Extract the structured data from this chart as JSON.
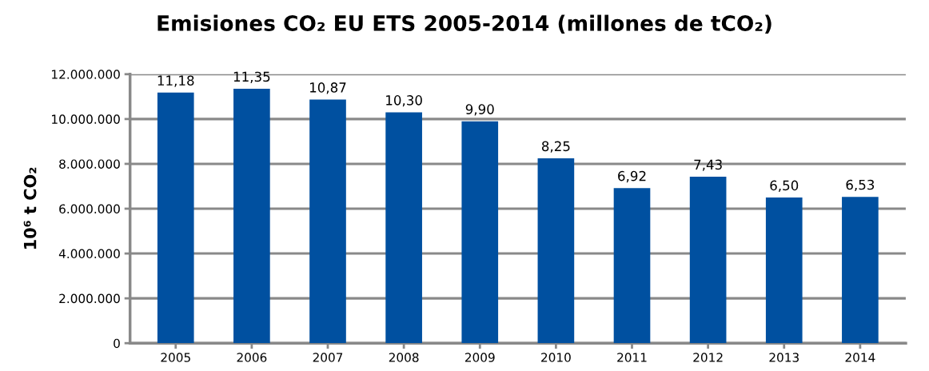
{
  "chart_data": {
    "type": "bar",
    "title": "Emisiones CO₂ EU ETS 2005-2014 (millones de tCO₂)",
    "ylabel": "10⁶ t CO₂",
    "categories": [
      "2005",
      "2006",
      "2007",
      "2008",
      "2009",
      "2010",
      "2011",
      "2012",
      "2013",
      "2014"
    ],
    "values": [
      11180000,
      11350000,
      10870000,
      10300000,
      9900000,
      8250000,
      6920000,
      7430000,
      6500000,
      6530000
    ],
    "annotations": [
      {
        "text": "11,18",
        "x": "2005",
        "y": 11180000
      },
      {
        "text": "11,35",
        "x": "2006",
        "y": 11350000
      },
      {
        "text": "10,87",
        "x": "2007",
        "y": 10870000
      },
      {
        "text": "10,30",
        "x": "2008",
        "y": 10300000
      },
      {
        "text": "9,90",
        "x": "2009",
        "y": 9900000
      },
      {
        "text": "8,25",
        "x": "2010",
        "y": 8250000
      },
      {
        "text": "6,92",
        "x": "2011",
        "y": 6920000
      },
      {
        "text": "7,43",
        "x": "2012",
        "y": 7430000
      },
      {
        "text": "6,50",
        "x": "2013",
        "y": 6500000
      },
      {
        "text": "6,53",
        "x": "2014",
        "y": 6530000
      }
    ],
    "color": "#0050a0",
    "ylim": [
      0,
      12000000
    ],
    "yticks": [
      0,
      {
        "value": 2000000,
        "label": "2.000.000"
      },
      {
        "value": 4000000,
        "label": "4.000.000"
      },
      {
        "value": 6000000,
        "label": "6.000.000"
      },
      {
        "value": 8000000,
        "label": "8.000.000"
      },
      {
        "value": 10000000,
        "label": "10.000.000"
      },
      {
        "value": 12000000,
        "label": "12.000.000"
      }
    ],
    "grid": "y"
  }
}
